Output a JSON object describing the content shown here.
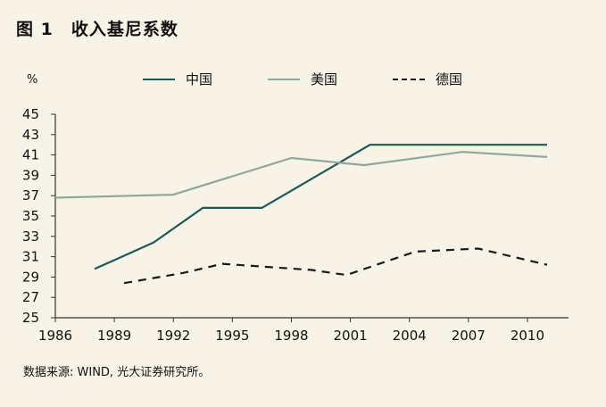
{
  "figure": {
    "label": "图 1",
    "title": "收入基尼系数",
    "source": "数据来源: WIND, 光大证券研究所。"
  },
  "chart_data": {
    "type": "line",
    "ylabel": "%",
    "xlabel": "",
    "ylim": [
      25,
      45
    ],
    "xlim": [
      1986,
      2011.5
    ],
    "yticks": [
      25,
      27,
      29,
      31,
      33,
      35,
      37,
      39,
      41,
      43,
      45
    ],
    "xticks": [
      1986,
      1989,
      1992,
      1995,
      1998,
      2001,
      2004,
      2007,
      2010
    ],
    "legend_position": "top",
    "grid": false,
    "series": [
      {
        "name": "中国",
        "color": "#1e5a55",
        "style": "solid",
        "x": [
          1988,
          1991,
          1993.5,
          1996.5,
          2002,
          2008,
          2011
        ],
        "y": [
          29.8,
          32.4,
          35.8,
          35.8,
          42.0,
          42.0,
          42.0
        ]
      },
      {
        "name": "美国",
        "color": "#8fa89c",
        "style": "solid",
        "x": [
          1986,
          1992,
          1998,
          2001.7,
          2006.7,
          2011
        ],
        "y": [
          36.8,
          37.1,
          40.7,
          40.0,
          41.3,
          40.8
        ]
      },
      {
        "name": "德国",
        "color": "#1a1a1a",
        "style": "dashed",
        "x": [
          1989.5,
          1992.5,
          1994.5,
          1999,
          2000.8,
          2004.3,
          2007.5,
          2011
        ],
        "y": [
          28.4,
          29.4,
          30.3,
          29.7,
          29.2,
          31.5,
          31.8,
          30.2
        ]
      }
    ]
  }
}
